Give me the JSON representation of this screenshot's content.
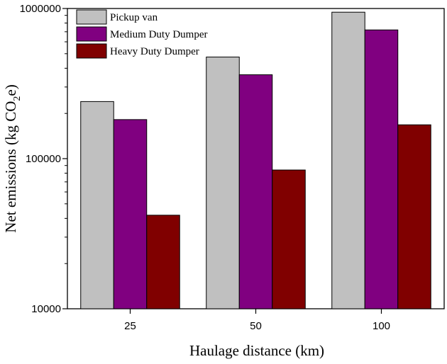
{
  "chart_data": {
    "type": "bar",
    "title": "",
    "xlabel": "Haulage distance (km)",
    "ylabel": "Net emissions (kg CO",
    "ylabel_subscript": "2",
    "ylabel_suffix": "e)",
    "y_scale": "log",
    "ylim": [
      10000,
      1000000
    ],
    "y_ticks": [
      "10000",
      "100000",
      "1000000"
    ],
    "categories": [
      "25",
      "50",
      "100"
    ],
    "series": [
      {
        "name": "Pickup van",
        "color": "#c0c0c0",
        "values": [
          240000,
          475000,
          945000
        ]
      },
      {
        "name": "Medium Duty Dumper",
        "color": "#800080",
        "values": [
          182000,
          362000,
          720000
        ]
      },
      {
        "name": "Heavy Duty Dumper",
        "color": "#800000",
        "values": [
          42000,
          84000,
          168000
        ]
      }
    ],
    "legend_position": "top-left",
    "grid": false
  }
}
